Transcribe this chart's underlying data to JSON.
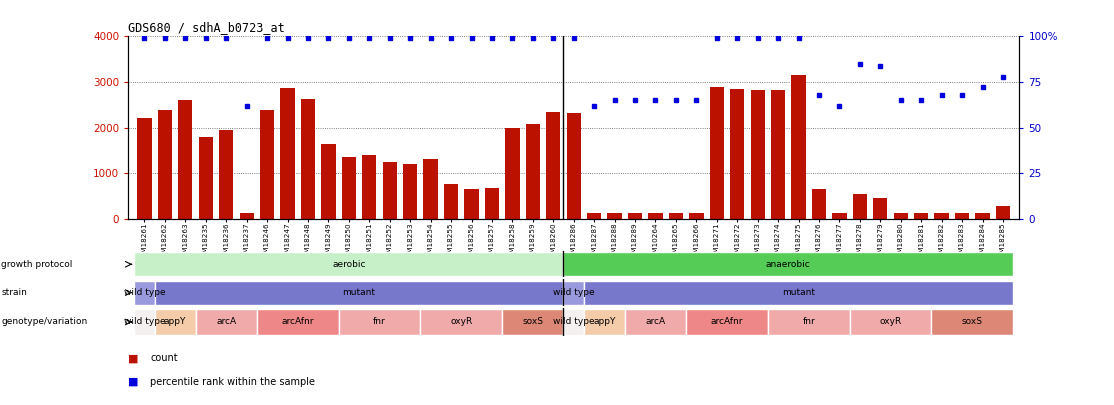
{
  "title": "GDS680 / sdhA_b0723_at",
  "samples": [
    "GSM18261",
    "GSM18262",
    "GSM18263",
    "GSM18235",
    "GSM18236",
    "GSM18237",
    "GSM18246",
    "GSM18247",
    "GSM18248",
    "GSM18249",
    "GSM18250",
    "GSM18251",
    "GSM18252",
    "GSM18253",
    "GSM18254",
    "GSM18255",
    "GSM18256",
    "GSM18257",
    "GSM18258",
    "GSM18259",
    "GSM18260",
    "GSM18286",
    "GSM18287",
    "GSM18288",
    "GSM18289",
    "GSM10264",
    "GSM18265",
    "GSM18266",
    "GSM18271",
    "GSM18272",
    "GSM18273",
    "GSM18274",
    "GSM18275",
    "GSM18276",
    "GSM18277",
    "GSM18278",
    "GSM18279",
    "GSM18280",
    "GSM18281",
    "GSM18282",
    "GSM18283",
    "GSM18284",
    "GSM18285"
  ],
  "counts": [
    2200,
    2380,
    2600,
    1800,
    1950,
    130,
    2380,
    2870,
    2620,
    1640,
    1350,
    1390,
    1250,
    1200,
    1310,
    760,
    650,
    680,
    1980,
    2080,
    2350,
    2330,
    130,
    130,
    130,
    130,
    130,
    130,
    2900,
    2850,
    2820,
    2820,
    3150,
    660,
    130,
    550,
    450,
    130,
    130,
    130,
    130,
    130,
    280
  ],
  "percentiles": [
    99,
    99,
    99,
    99,
    99,
    62,
    99,
    99,
    99,
    99,
    99,
    99,
    99,
    99,
    99,
    99,
    99,
    99,
    99,
    99,
    99,
    99,
    62,
    65,
    65,
    65,
    65,
    65,
    99,
    99,
    99,
    99,
    99,
    68,
    62,
    85,
    84,
    65,
    65,
    68,
    68,
    72,
    78
  ],
  "bar_color": "#bb1100",
  "dot_color": "#0000dd",
  "ylim_left": [
    0,
    4000
  ],
  "ylim_right": [
    0,
    100
  ],
  "yticks_left": [
    0,
    1000,
    2000,
    3000,
    4000
  ],
  "yticks_right": [
    0,
    25,
    50,
    75,
    100
  ],
  "sep_index": 20.5,
  "aerobic_color": "#c8f0c8",
  "anaerobic_color": "#55cc55",
  "wt_color": "#9999dd",
  "mut_color": "#7777cc",
  "gt_wt_color": "#f5f0f0",
  "gt_appY_color": "#f5ccaa",
  "gt_arcA_color": "#f0aaaa",
  "gt_arcAfnr_color": "#ee8888",
  "gt_fnr_color": "#f0aaaa",
  "gt_oxyR_color": "#f0aaaa",
  "gt_soxS_color": "#dd8877",
  "label_row1": "growth protocol",
  "label_row2": "strain",
  "label_row3": "genotype/variation",
  "legend_count": "count",
  "legend_percentile": "percentile rank within the sample",
  "bg_color": "#ffffff"
}
